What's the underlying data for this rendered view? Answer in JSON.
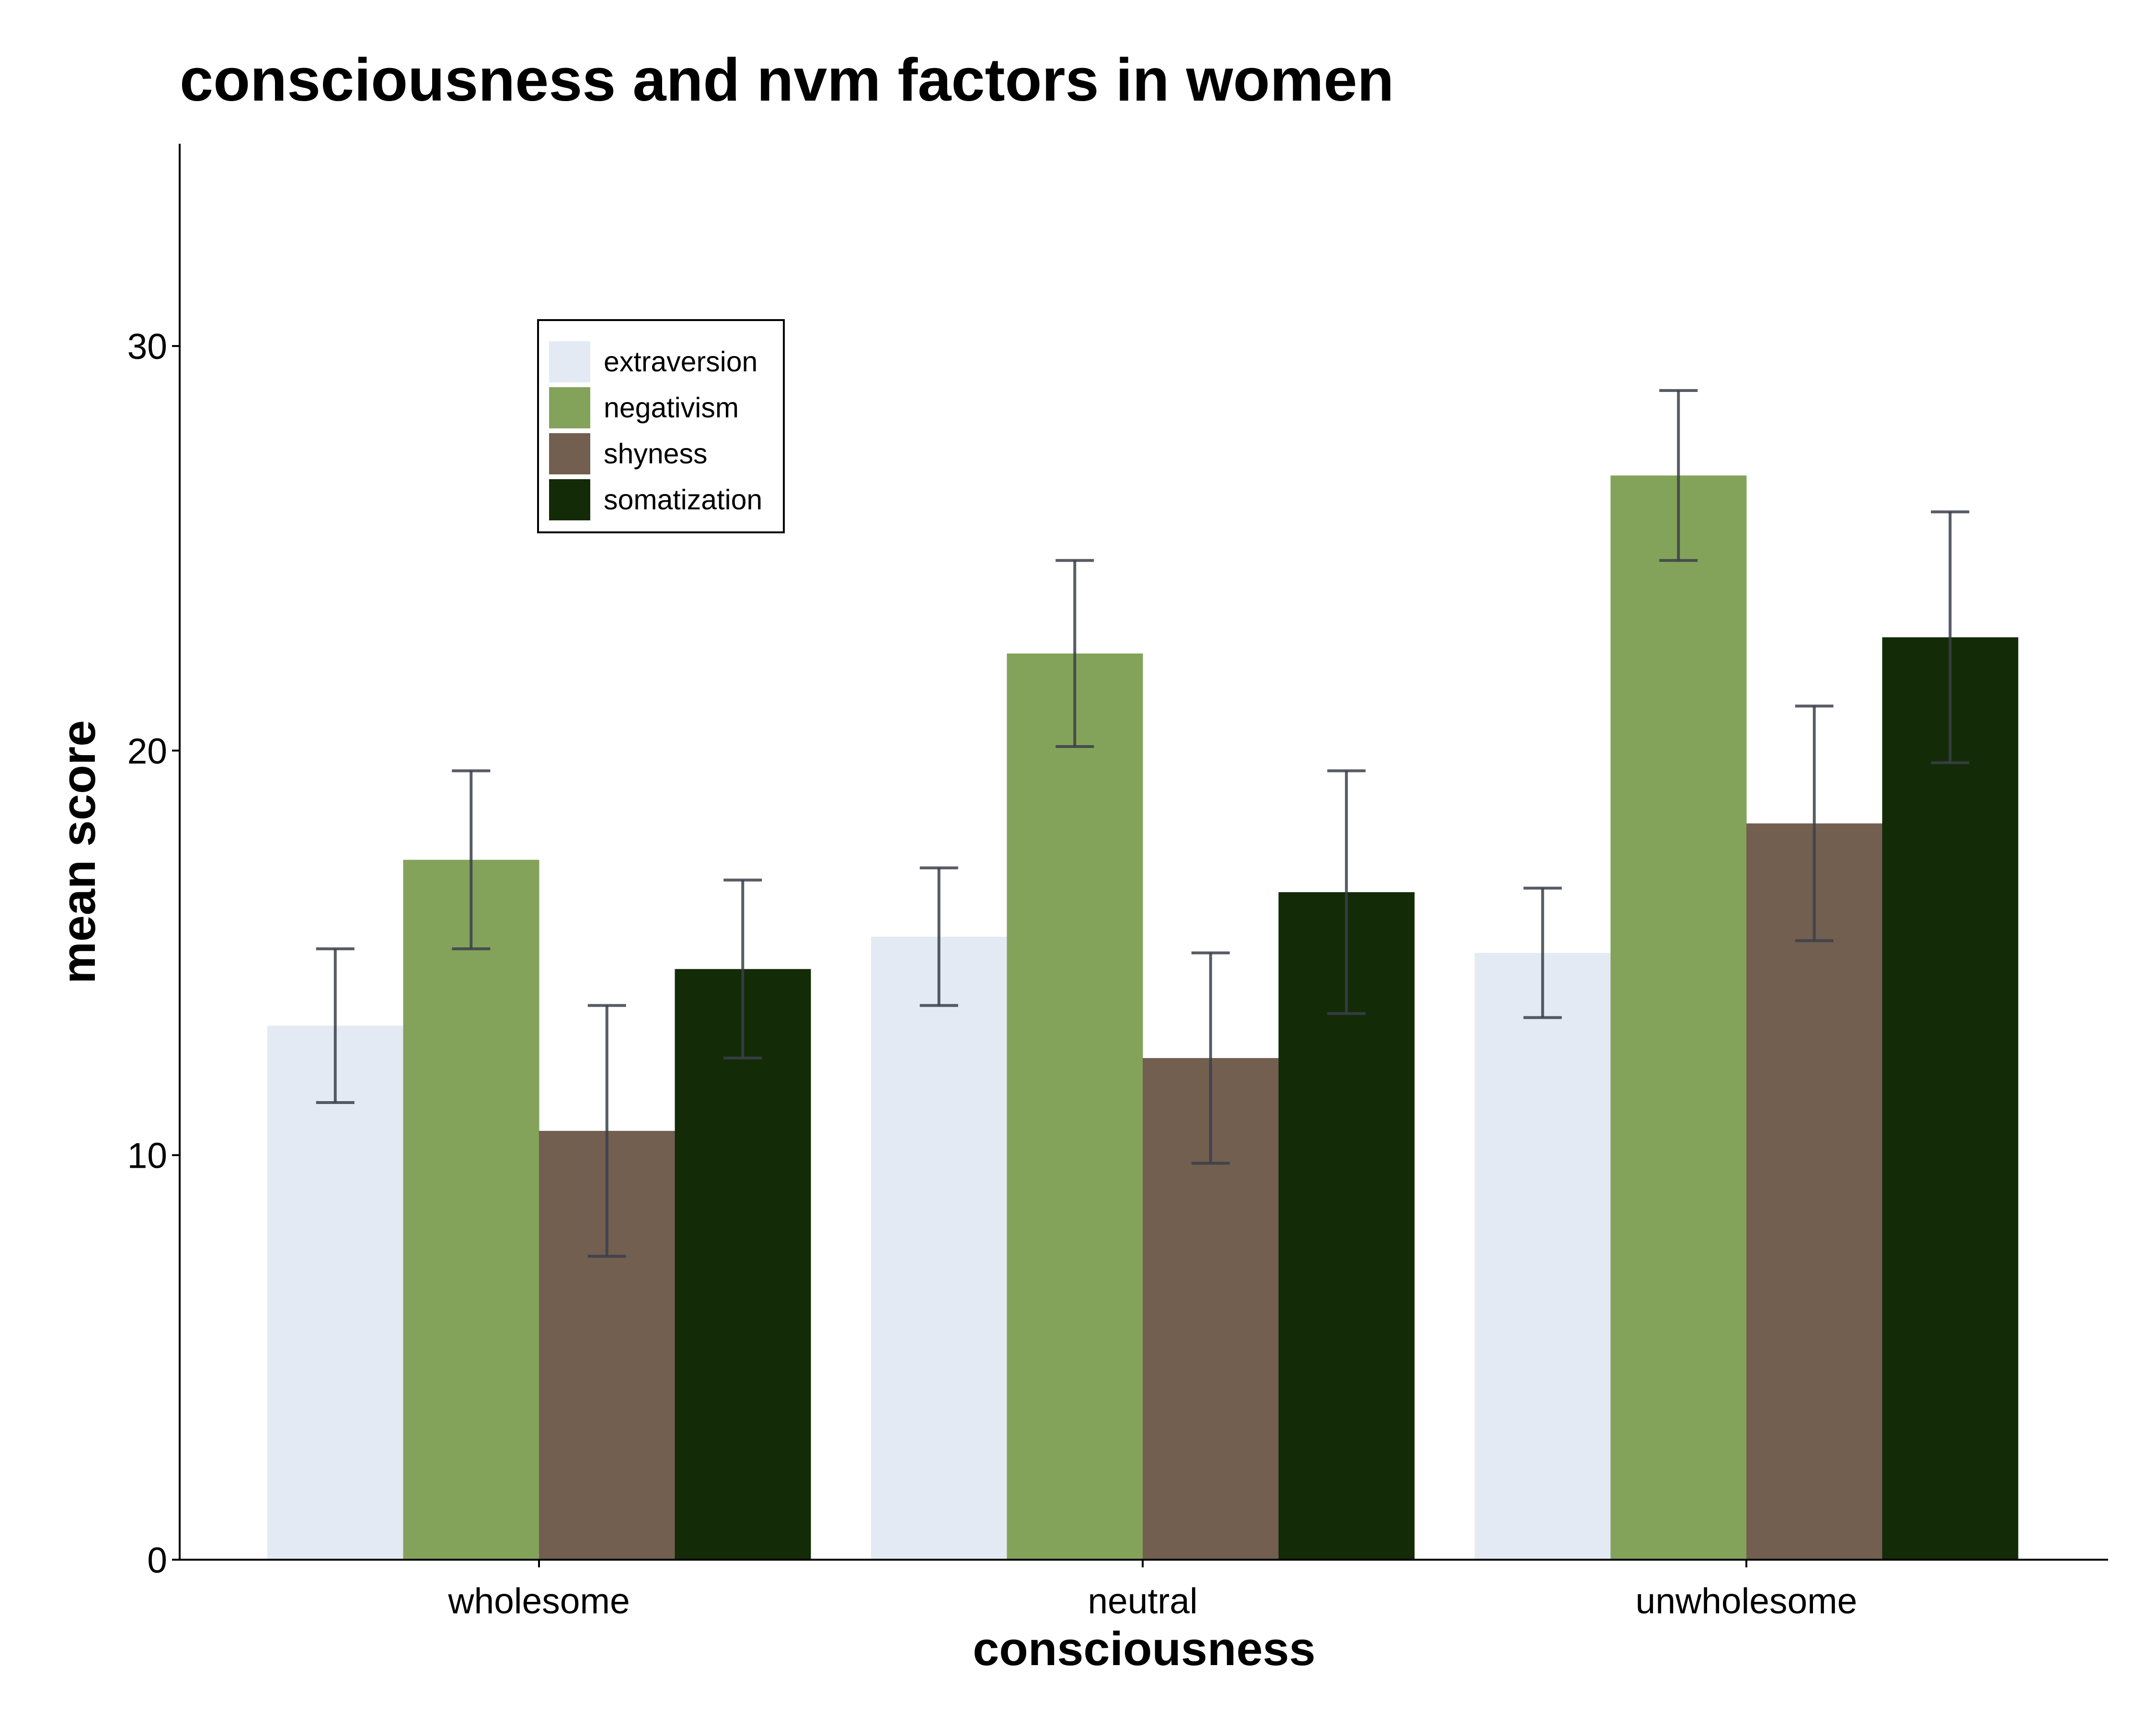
{
  "chart_data": {
    "type": "bar",
    "title": "consciousness and nvm factors in women",
    "xlabel": "consciousness",
    "ylabel": "mean score",
    "categories": [
      "wholesome",
      "neutral",
      "unwholesome"
    ],
    "ylim": [
      0,
      35
    ],
    "yticks": [
      0,
      10,
      20,
      30
    ],
    "grid": false,
    "legend_position": "top-left",
    "series": [
      {
        "name": "extraversion",
        "color": "#e3eaf3",
        "values": [
          13.2,
          15.4,
          15.0
        ],
        "errors": [
          1.9,
          1.7,
          1.6
        ]
      },
      {
        "name": "negativism",
        "color": "#84a35a",
        "values": [
          17.3,
          22.4,
          26.8
        ],
        "errors": [
          2.2,
          2.3,
          2.1
        ]
      },
      {
        "name": "shyness",
        "color": "#725f50",
        "values": [
          10.6,
          12.4,
          18.2
        ],
        "errors": [
          3.1,
          2.6,
          2.9
        ]
      },
      {
        "name": "somatization",
        "color": "#132b07",
        "values": [
          14.6,
          16.5,
          22.8
        ],
        "errors": [
          2.2,
          3.0,
          3.1
        ]
      }
    ]
  }
}
